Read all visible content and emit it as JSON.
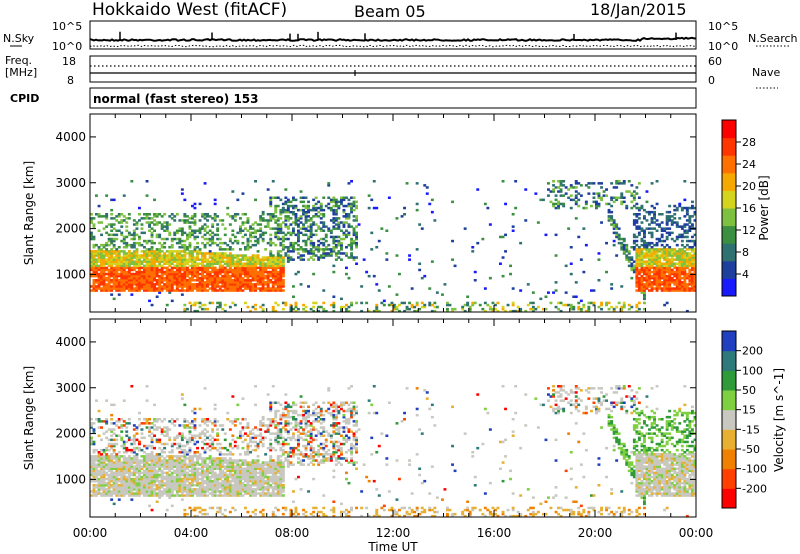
{
  "header": {
    "title": "Hokkaido West (fitACF)",
    "beam": "Beam 05",
    "date": "18/Jan/2015"
  },
  "noise_panel": {
    "left_label": "N.Sky",
    "right_label": "N.Search",
    "left_ticks": [
      "10^5",
      "10^0"
    ],
    "right_ticks": [
      "10^5",
      "10^0"
    ]
  },
  "freq_panel": {
    "left_label_1": "Freq.",
    "left_label_2": "[MHz]",
    "left_ticks": [
      "18",
      "8"
    ],
    "right_label": "Nave",
    "right_ticks": [
      "60",
      "0"
    ]
  },
  "cpid": {
    "label": "CPID",
    "text": "normal (fast stereo) 153"
  },
  "chart_data": [
    {
      "type": "heatmap",
      "parameter": "power",
      "ylabel": "Slant Range [km]",
      "xlabel": "",
      "ylim": [
        180,
        4500
      ],
      "y_ticks": [
        "1000",
        "2000",
        "3000",
        "4000"
      ],
      "x_ticks": [],
      "colorbar": {
        "label": "Power [dB]",
        "ticks": [
          "4",
          "8",
          "12",
          "16",
          "20",
          "24",
          "28"
        ],
        "colors": [
          "#1a1aff",
          "#1e3f9e",
          "#2f7070",
          "#3a9040",
          "#7ec040",
          "#d4d41f",
          "#f5a800",
          "#ff7000",
          "#ff3500",
          "#ff0000"
        ]
      },
      "features": [
        {
          "region": "near-range band",
          "hours": [
            0,
            7.6
          ],
          "range_km": [
            600,
            1500
          ],
          "typical_power_dB": 24
        },
        {
          "region": "E-region/ground band",
          "hours": [
            4,
            22
          ],
          "range_km": [
            180,
            400
          ],
          "typical_power_dB": 14
        },
        {
          "region": "far-range patches",
          "hours": [
            8,
            10
          ],
          "range_km": [
            1500,
            2600
          ],
          "typical_power_dB": 12
        },
        {
          "region": "evening band",
          "hours": [
            21.6,
            24
          ],
          "range_km": [
            600,
            1500
          ],
          "typical_power_dB": 24
        }
      ]
    },
    {
      "type": "heatmap",
      "parameter": "velocity",
      "ylabel": "Slant Range [km]",
      "xlabel": "Time UT",
      "ylim": [
        180,
        4500
      ],
      "y_ticks": [
        "1000",
        "2000",
        "3000",
        "4000"
      ],
      "x_ticks": [
        "00:00",
        "04:00",
        "08:00",
        "12:00",
        "16:00",
        "20:00",
        "00:00"
      ],
      "colorbar": {
        "label": "Velocity [m s^-1]",
        "ticks": [
          "200",
          "100",
          "50",
          "15",
          "-15",
          "-50",
          "-100",
          "-200"
        ],
        "colors": [
          "#2040c0",
          "#2e7a7a",
          "#2f9a3a",
          "#7ed040",
          "#c8c8c0",
          "#e8b030",
          "#f08000",
          "#ff4000",
          "#ff0000"
        ]
      }
    }
  ]
}
